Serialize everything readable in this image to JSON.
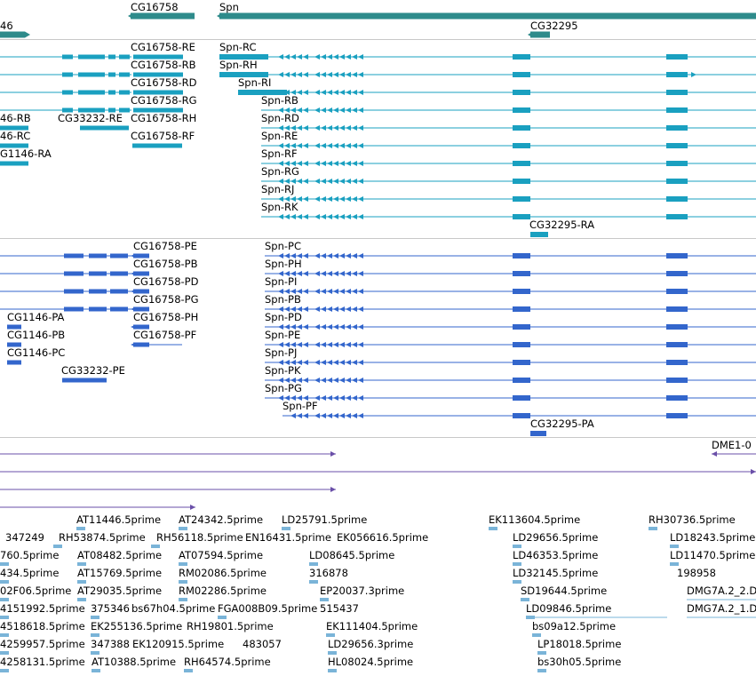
{
  "colors": {
    "gene": "#2e8b8b",
    "transcript": "#1aa0c0",
    "protein": "#3366cc",
    "alignment": "#6a4fa8",
    "est": "#7ab4d8",
    "separator": "#c8c8c8"
  },
  "tracks": {
    "gene": {
      "labels": [
        "CG16758",
        "Spn",
        "46",
        "CG32295"
      ]
    },
    "transcript": {
      "labels": [
        "CG16758-RE",
        "Spn-RC",
        "CG16758-RB",
        "Spn-RH",
        "CG16758-RD",
        "Spn-RI",
        "CG16758-RG",
        "Spn-RB",
        "46-RB",
        "CG33232-RE",
        "CG16758-RH",
        "Spn-RD",
        "46-RC",
        "CG16758-RF",
        "Spn-RE",
        "G1146-RA",
        "Spn-RF",
        "Spn-RG",
        "Spn-RJ",
        "Spn-RK",
        "CG32295-RA"
      ]
    },
    "protein": {
      "labels": [
        "CG16758-PE",
        "Spn-PC",
        "CG16758-PB",
        "Spn-PH",
        "CG16758-PD",
        "Spn-PI",
        "CG16758-PG",
        "Spn-PB",
        "CG1146-PA",
        "CG16758-PH",
        "Spn-PD",
        "CG1146-PB",
        "CG16758-PF",
        "Spn-PE",
        "CG1146-PC",
        "Spn-PJ",
        "CG33232-PE",
        "Spn-PK",
        "Spn-PG",
        "Spn-PF",
        "CG32295-PA"
      ]
    },
    "alignment": {
      "labels": [
        "DME1-0"
      ]
    },
    "est": {
      "labels": [
        "AT11446.5prime",
        "AT24342.5prime",
        "LD25791.5prime",
        "EK113604.5prime",
        "RH30736.5prime",
        "347249",
        "RH53874.5prime",
        "RH56118.5prime",
        "EN16431.5prime",
        "EK056616.5prime",
        "LD29656.5prime",
        "LD18243.5prime",
        "760.5prime",
        "AT08482.5prime",
        "AT07594.5prime",
        "LD08645.5prime",
        "LD46353.5prime",
        "LD11470.5prime",
        "434.5prime",
        "AT15769.5prime",
        "RM02086.5prime",
        "316878",
        "LD32145.5prime",
        "198958",
        "02F06.5prime",
        "AT29035.5prime",
        "RM02286.5prime",
        "EP20037.3prime",
        "SD19644.5prime",
        "DMG7A.2_2.D",
        "4151992.5prime",
        "375346",
        "bs67h04.5prime",
        "FGA008B09.5prime",
        "515437",
        "LD09846.5prime",
        "DMG7A.2_1.D",
        "4518618.5prime",
        "EK255136.5prime",
        "RH19801.5prime",
        "EK111404.5prime",
        "bs09a12.5prime",
        "4259957.5prime",
        "347388",
        "EK120915.5prime",
        "483057",
        "LD29656.3prime",
        "LP18018.5prime",
        "4258131.5prime",
        "AT10388.5prime",
        "RH64574.5prime",
        "HL08024.5prime",
        "bs30h05.5prime"
      ]
    }
  }
}
